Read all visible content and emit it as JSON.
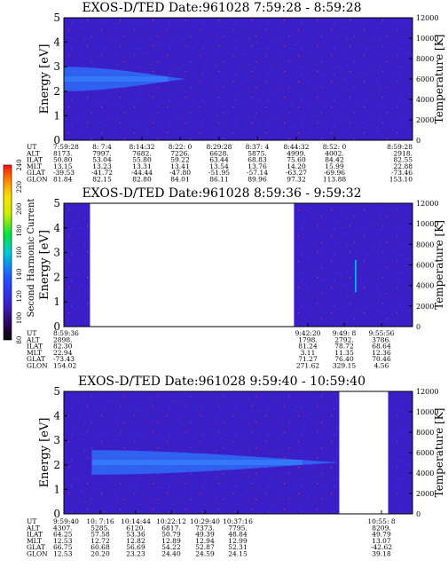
{
  "colorbar": {
    "label": "Second Harmonic Current",
    "ticks": [
      "80",
      "100",
      "120",
      "140",
      "160",
      "180",
      "200",
      "220",
      "240"
    ]
  },
  "chart_data": [
    {
      "type": "heatmap",
      "title": "EXOS-D/TED   Date:961028   7:59:28 - 8:59:28",
      "ylabel": "Energy [eV]",
      "y2label": "Temperature [K]",
      "ylim": [
        0,
        5
      ],
      "y2lim": [
        0,
        12000
      ],
      "yticks": [
        "0",
        "1",
        "2",
        "3",
        "4",
        "5"
      ],
      "y2ticks": [
        "0",
        "2000",
        "4000",
        "6000",
        "8000",
        "10000",
        "12000"
      ],
      "data_spans": [
        [
          0,
          1
        ]
      ],
      "band": {
        "center_ev": 2.5,
        "halfwidth_ev": 0.5,
        "end_fraction": 0.35
      },
      "table": {
        "row_labels": [
          "UT",
          "ALT",
          "ILAT",
          "MLT",
          "GLAT",
          "GLON"
        ],
        "columns": [
          {
            "UT": "7:59:28",
            "ALT": "8173.",
            "ILAT": "50.80",
            "MLT": "13.15",
            "GLAT": "-39.53",
            "GLON": "81.84"
          },
          {
            "UT": "8: 7:4",
            "ALT": "7997.",
            "ILAT": "53.04",
            "MLT": "13.23",
            "GLAT": "-41.72",
            "GLON": "82.15"
          },
          {
            "UT": "8:14:32",
            "ALT": "7682.",
            "ILAT": "55.80",
            "MLT": "13.31",
            "GLAT": "-44.44",
            "GLON": "82.80"
          },
          {
            "UT": "8:22: 0",
            "ALT": "7226.",
            "ILAT": "59.22",
            "MLT": "13.41",
            "GLAT": "-47.80",
            "GLON": "84.01"
          },
          {
            "UT": "8:29:28",
            "ALT": "6628.",
            "ILAT": "63.44",
            "MLT": "13.54",
            "GLAT": "-51.95",
            "GLON": "86.11"
          },
          {
            "UT": "8:37: 4",
            "ALT": "5875.",
            "ILAT": "68.83",
            "MLT": "13.76",
            "GLAT": "-57.14",
            "GLON": "89.96"
          },
          {
            "UT": "8:44:32",
            "ALT": "4999.",
            "ILAT": "75.60",
            "MLT": "14.20",
            "GLAT": "-63.27",
            "GLON": "97.32"
          },
          {
            "UT": "8:52: 0",
            "ALT": "4002.",
            "ILAT": "84.42",
            "MLT": "15.99",
            "GLAT": "-69.96",
            "GLON": "113.88"
          },
          {
            "UT": "8:59:28",
            "ALT": "2918.",
            "ILAT": "82.55",
            "MLT": "22.88",
            "GLAT": "-73.46",
            "GLON": "153.10"
          }
        ]
      }
    },
    {
      "type": "heatmap",
      "title": "EXOS-D/TED   Date:961028   8:59:36 - 9:59:32",
      "ylabel": "Energy [eV]",
      "y2label": "Temperature [K]",
      "ylim": [
        0,
        5
      ],
      "y2lim": [
        0,
        12000
      ],
      "yticks": [
        "0",
        "1",
        "2",
        "3",
        "4",
        "5"
      ],
      "y2ticks": [
        "0",
        "2000",
        "4000",
        "6000",
        "8000",
        "10000",
        "12000"
      ],
      "data_spans": [
        [
          0,
          0.075
        ],
        [
          0.66,
          1
        ]
      ],
      "band": null,
      "table": {
        "row_labels": [
          "UT",
          "ALT",
          "ILAT",
          "MLT",
          "GLAT",
          "GLON"
        ],
        "columns": [
          {
            "UT": "8:59:36",
            "ALT": "2898.",
            "ILAT": "82.30",
            "MLT": "22.94",
            "GLAT": "-73.43",
            "GLON": "154.02"
          },
          {
            "UT": "9:42:20",
            "ALT": "1798.",
            "ILAT": "81.24",
            "MLT": "3.11",
            "GLAT": "71.27",
            "GLON": "271.62"
          },
          {
            "UT": "9:49: 8",
            "ALT": "2792.",
            "ILAT": "78.72",
            "MLT": "11.35",
            "GLAT": "76.40",
            "GLON": "329.15"
          },
          {
            "UT": "9:55:56",
            "ALT": "3786.",
            "ILAT": "68.64",
            "MLT": "12.36",
            "GLAT": "70.46",
            "GLON": "4.56"
          }
        ]
      }
    },
    {
      "type": "heatmap",
      "title": "EXOS-D/TED   Date:961028   9:59:40 - 10:59:40",
      "ylabel": "Energy [eV]",
      "y2label": "Temperature [K]",
      "ylim": [
        0,
        5
      ],
      "y2lim": [
        0,
        12000
      ],
      "yticks": [
        "0",
        "1",
        "2",
        "3",
        "4",
        "5"
      ],
      "y2ticks": [
        "0",
        "2000",
        "4000",
        "6000",
        "8000",
        "10000",
        "12000"
      ],
      "data_spans": [
        [
          0,
          0.79
        ],
        [
          0.93,
          1
        ]
      ],
      "band": {
        "center_ev": 2.1,
        "halfwidth_ev": 0.5,
        "start_fraction": 0.08,
        "end_fraction": 0.79
      },
      "table": {
        "row_labels": [
          "UT",
          "ALT",
          "ILAT",
          "MLT",
          "GLAT",
          "GLON"
        ],
        "columns": [
          {
            "UT": "9:59:40",
            "ALT": "4307.",
            "ILAT": "64.25",
            "MLT": "12.53",
            "GLAT": "66.75",
            "GLON": "12.53"
          },
          {
            "UT": "10: 7:16",
            "ALT": "5285.",
            "ILAT": "57.58",
            "MLT": "12.72",
            "GLAT": "60.68",
            "GLON": "20.20"
          },
          {
            "UT": "10:14:44",
            "ALT": "6120.",
            "ILAT": "53.36",
            "MLT": "12.82",
            "GLAT": "56.69",
            "GLON": "23.23"
          },
          {
            "UT": "10:22:12",
            "ALT": "6817.",
            "ILAT": "50.79",
            "MLT": "12.89",
            "GLAT": "54.22",
            "GLON": "24.40"
          },
          {
            "UT": "10:29:40",
            "ALT": "7373.",
            "ILAT": "49.39",
            "MLT": "12.94",
            "GLAT": "52.87",
            "GLON": "24.59"
          },
          {
            "UT": "10:37:16",
            "ALT": "7795.",
            "ILAT": "48.84",
            "MLT": "12.99",
            "GLAT": "52.31",
            "GLON": "24.15"
          },
          {
            "UT": "10:55: 8",
            "ALT": "8209.",
            "ILAT": "49.79",
            "MLT": "13.07",
            "GLAT": "-42.62",
            "GLON": "39.18"
          }
        ]
      }
    }
  ]
}
